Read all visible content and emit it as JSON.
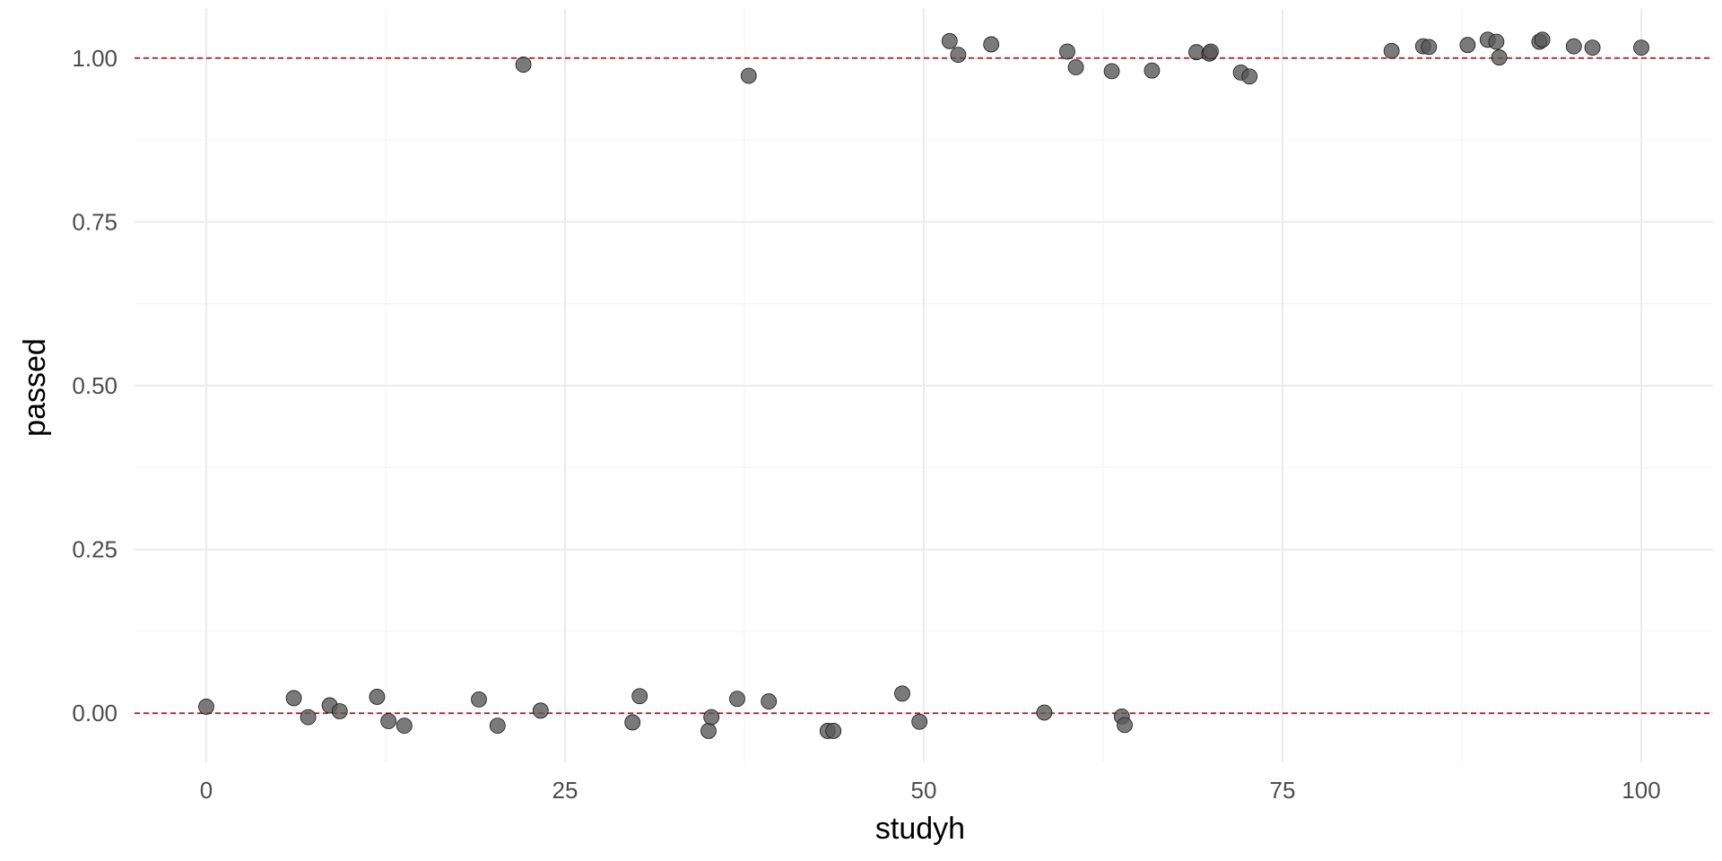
{
  "chart_data": {
    "type": "scatter",
    "title": "",
    "xlabel": "studyh",
    "ylabel": "passed",
    "xlim": [
      -5,
      105
    ],
    "ylim": [
      -0.075,
      1.075
    ],
    "x_ticks": [
      0,
      25,
      50,
      75,
      100
    ],
    "x_tick_labels": [
      "0",
      "25",
      "50",
      "75",
      "100"
    ],
    "y_ticks": [
      0,
      0.25,
      0.5,
      0.75,
      1
    ],
    "y_tick_labels": [
      "0.00",
      "0.25",
      "0.50",
      "0.75",
      "1.00"
    ],
    "grid": true,
    "reference_lines": [
      0,
      1
    ],
    "colors": {
      "point_fill": "#595959",
      "point_stroke": "#1a1a1a",
      "reference_line": "#b2182b",
      "grid_major": "#ebebeb",
      "grid_minor": "#f4f4f4"
    },
    "series": [
      {
        "points": [
          {
            "x": 0.0,
            "y": 0.01
          },
          {
            "x": 6.1,
            "y": 0.023
          },
          {
            "x": 7.1,
            "y": -0.006
          },
          {
            "x": 8.6,
            "y": 0.012
          },
          {
            "x": 9.3,
            "y": 0.003
          },
          {
            "x": 11.9,
            "y": 0.025
          },
          {
            "x": 12.7,
            "y": -0.012
          },
          {
            "x": 13.8,
            "y": -0.019
          },
          {
            "x": 19.0,
            "y": 0.021
          },
          {
            "x": 20.3,
            "y": -0.019
          },
          {
            "x": 22.1,
            "y": 0.99
          },
          {
            "x": 23.3,
            "y": 0.004
          },
          {
            "x": 29.7,
            "y": -0.014
          },
          {
            "x": 30.2,
            "y": 0.026
          },
          {
            "x": 35.0,
            "y": -0.027
          },
          {
            "x": 35.2,
            "y": -0.006
          },
          {
            "x": 37.0,
            "y": 0.022
          },
          {
            "x": 37.8,
            "y": 0.973
          },
          {
            "x": 39.2,
            "y": 0.018
          },
          {
            "x": 43.3,
            "y": -0.027
          },
          {
            "x": 43.7,
            "y": -0.027
          },
          {
            "x": 48.5,
            "y": 0.03
          },
          {
            "x": 49.7,
            "y": -0.013
          },
          {
            "x": 51.8,
            "y": 1.026
          },
          {
            "x": 52.4,
            "y": 1.005
          },
          {
            "x": 54.7,
            "y": 1.021
          },
          {
            "x": 58.4,
            "y": 0.001
          },
          {
            "x": 60.0,
            "y": 1.01
          },
          {
            "x": 60.6,
            "y": 0.986
          },
          {
            "x": 63.1,
            "y": 0.98
          },
          {
            "x": 63.8,
            "y": -0.005
          },
          {
            "x": 64.0,
            "y": -0.018
          },
          {
            "x": 65.9,
            "y": 0.981
          },
          {
            "x": 69.0,
            "y": 1.009
          },
          {
            "x": 69.9,
            "y": 1.007
          },
          {
            "x": 70.0,
            "y": 1.01
          },
          {
            "x": 72.1,
            "y": 0.978
          },
          {
            "x": 72.7,
            "y": 0.972
          },
          {
            "x": 82.6,
            "y": 1.011
          },
          {
            "x": 84.8,
            "y": 1.018
          },
          {
            "x": 85.2,
            "y": 1.017
          },
          {
            "x": 87.9,
            "y": 1.02
          },
          {
            "x": 89.3,
            "y": 1.028
          },
          {
            "x": 89.9,
            "y": 1.025
          },
          {
            "x": 90.1,
            "y": 1.001
          },
          {
            "x": 92.9,
            "y": 1.025
          },
          {
            "x": 93.1,
            "y": 1.028
          },
          {
            "x": 95.3,
            "y": 1.018
          },
          {
            "x": 96.6,
            "y": 1.016
          },
          {
            "x": 100.0,
            "y": 1.016
          }
        ]
      }
    ]
  }
}
